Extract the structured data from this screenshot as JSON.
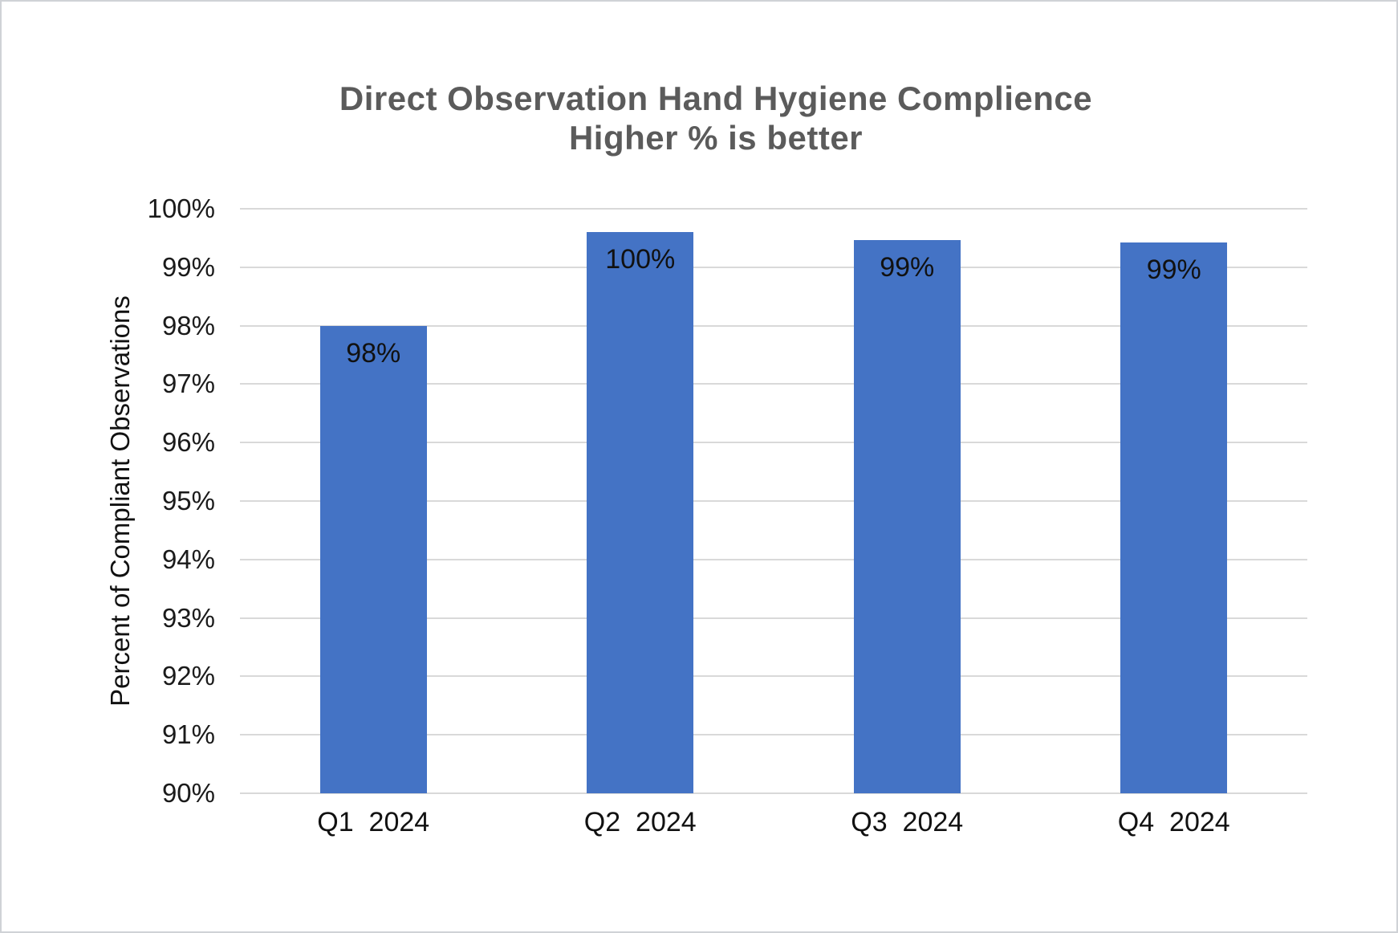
{
  "page": {
    "background_color": "#ffffff",
    "frame_border_color": "#cfd2d6"
  },
  "chart_data": {
    "type": "bar",
    "title": "Direct Observation Hand Hygiene Complience",
    "subtitle": "Higher % is better",
    "ylabel": "Percent of Compliant Observations",
    "xlabel": "",
    "categories": [
      "Q1  2024",
      "Q2  2024",
      "Q3  2024",
      "Q4  2024"
    ],
    "values": [
      98,
      99.6,
      99.47,
      99.42
    ],
    "data_labels": [
      "98%",
      "100%",
      "99%",
      "99%"
    ],
    "ylim": [
      90,
      100
    ],
    "y_tick_step": 1,
    "y_tick_labels": [
      "100%",
      "99%",
      "98%",
      "97%",
      "96%",
      "95%",
      "94%",
      "93%",
      "92%",
      "91%",
      "90%"
    ],
    "grid": true,
    "legend": false,
    "bar_color": "#4473c5",
    "gridline_color": "#d9d9d9",
    "title_color": "#5b5b5b",
    "axis_text_color": "#111111"
  }
}
